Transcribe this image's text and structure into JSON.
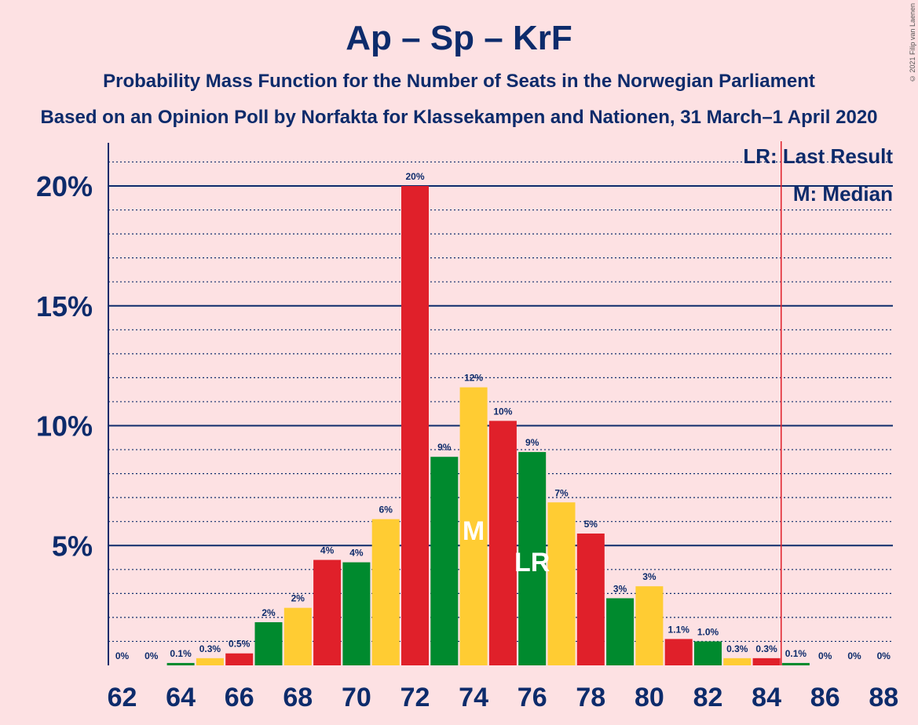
{
  "title": "Ap – Sp – KrF",
  "subtitle": "Probability Mass Function for the Number of Seats in the Norwegian Parliament",
  "subtitle2": "Based on an Opinion Poll by Norfakta for Klassekampen and Nationen, 31 March–1 April 2020",
  "copyright": "© 2021 Filip van Laenen",
  "legend": {
    "last_result": "LR: Last Result",
    "median": "M: Median"
  },
  "colors": {
    "background": "#fde1e3",
    "text": "#0d2b6b",
    "red": "#e0202a",
    "yellow": "#ffcc33",
    "green": "#008a2e",
    "last_result_line": "#e0202a"
  },
  "chart_data": {
    "type": "bar",
    "x": [
      62,
      63,
      64,
      65,
      66,
      67,
      68,
      69,
      70,
      71,
      72,
      73,
      74,
      75,
      76,
      77,
      78,
      79,
      80,
      81,
      82,
      83,
      84,
      85,
      86,
      87,
      88
    ],
    "values": [
      0,
      0,
      0.1,
      0.3,
      0.5,
      1.8,
      2.4,
      4.4,
      4.3,
      6.1,
      20,
      8.7,
      11.6,
      10.2,
      8.9,
      6.8,
      5.5,
      2.8,
      3.3,
      1.1,
      1.0,
      0.3,
      0.3,
      0.1,
      0,
      0,
      0
    ],
    "data_labels": [
      "0%",
      "0%",
      "0.1%",
      "0.3%",
      "0.5%",
      "2%",
      "2%",
      "4%",
      "4%",
      "6%",
      "20%",
      "9%",
      "12%",
      "10%",
      "9%",
      "7%",
      "5%",
      "3%",
      "3%",
      "1.1%",
      "1.0%",
      "0.3%",
      "0.3%",
      "0.1%",
      "0%",
      "0%",
      "0%"
    ],
    "bar_colors": [
      "red",
      "yellow",
      "green",
      "yellow",
      "red",
      "green",
      "yellow",
      "red",
      "green",
      "yellow",
      "red",
      "green",
      "yellow",
      "red",
      "green",
      "yellow",
      "red",
      "green",
      "yellow",
      "red",
      "green",
      "yellow",
      "red",
      "green",
      "yellow",
      "red",
      "green"
    ],
    "x_tick_labels": [
      "62",
      "64",
      "66",
      "68",
      "70",
      "72",
      "74",
      "76",
      "78",
      "80",
      "82",
      "84",
      "86",
      "88"
    ],
    "y_tick_labels": [
      "5%",
      "10%",
      "15%",
      "20%"
    ],
    "y_ticks": [
      5,
      10,
      15,
      20
    ],
    "ylim": [
      0,
      21.8
    ],
    "median": 74,
    "median_label": "M",
    "last_result": 76,
    "last_result_label": "LR",
    "majority_line": 85,
    "grid": true
  }
}
